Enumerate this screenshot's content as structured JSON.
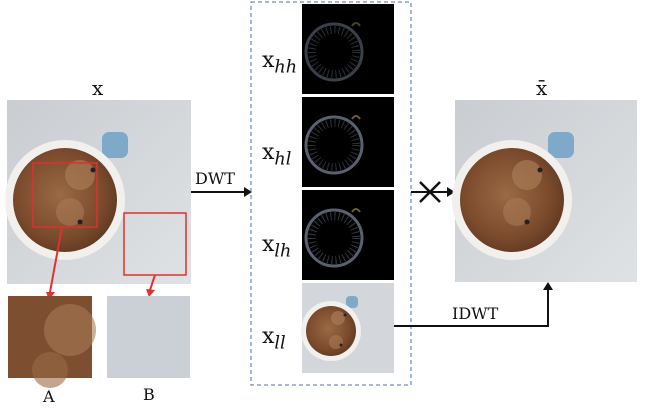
{
  "labels": {
    "x": "x",
    "x_bar": "x̄",
    "dwt": "DWT",
    "idwt": "IDWT",
    "crop_a": "A",
    "crop_b": "B"
  },
  "subbands": [
    {
      "base": "x",
      "sub": "hh"
    },
    {
      "base": "x",
      "sub": "hl"
    },
    {
      "base": "x",
      "sub": "lh"
    },
    {
      "base": "x",
      "sub": "ll"
    }
  ],
  "colors": {
    "table": "#d6d9dc",
    "coffee": "#7a4a2c",
    "crema": "#a87a55",
    "cup_rim": "#f3f1ee",
    "handle": "#7fa9c9",
    "highlight_box": "#e03030",
    "arrow": "#e03030",
    "dashed_box": "#4a70b0",
    "dark_band": "#000000"
  }
}
